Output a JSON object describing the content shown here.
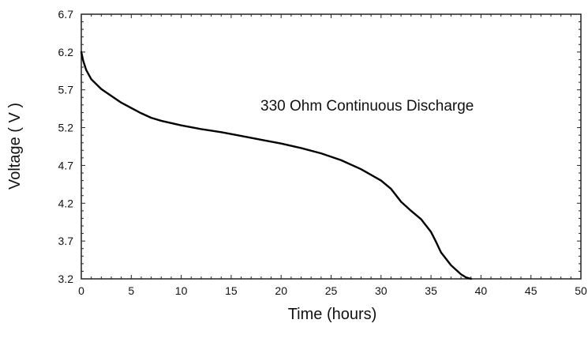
{
  "chart_data": {
    "type": "line",
    "annotation": "330 Ohm Continuous Discharge",
    "xlabel": "Time (hours)",
    "ylabel": "Voltage ( V )",
    "xlim": [
      0,
      50
    ],
    "ylim": [
      3.2,
      6.7
    ],
    "xticks": [
      "0",
      "5",
      "10",
      "15",
      "20",
      "25",
      "30",
      "35",
      "40",
      "45",
      "50"
    ],
    "yticks": [
      "6.7",
      "6.2",
      "5.7",
      "5.2",
      "4.7",
      "4.2",
      "3.7",
      "3.2"
    ],
    "grid": false,
    "series": [
      {
        "x": [
          0,
          0.2,
          0.5,
          1,
          2,
          3,
          4,
          5,
          6,
          7,
          8,
          10,
          12,
          14,
          16,
          18,
          20,
          22,
          24,
          26,
          28,
          30,
          31,
          32,
          33,
          34,
          35,
          35.5,
          36,
          37,
          38,
          38.5,
          39
        ],
        "y": [
          6.2,
          6.08,
          5.96,
          5.84,
          5.71,
          5.62,
          5.53,
          5.46,
          5.39,
          5.33,
          5.29,
          5.23,
          5.18,
          5.14,
          5.09,
          5.04,
          4.99,
          4.93,
          4.86,
          4.77,
          4.65,
          4.5,
          4.39,
          4.22,
          4.1,
          3.99,
          3.82,
          3.69,
          3.55,
          3.38,
          3.26,
          3.22,
          3.2
        ]
      }
    ],
    "line_color": "#000000"
  }
}
